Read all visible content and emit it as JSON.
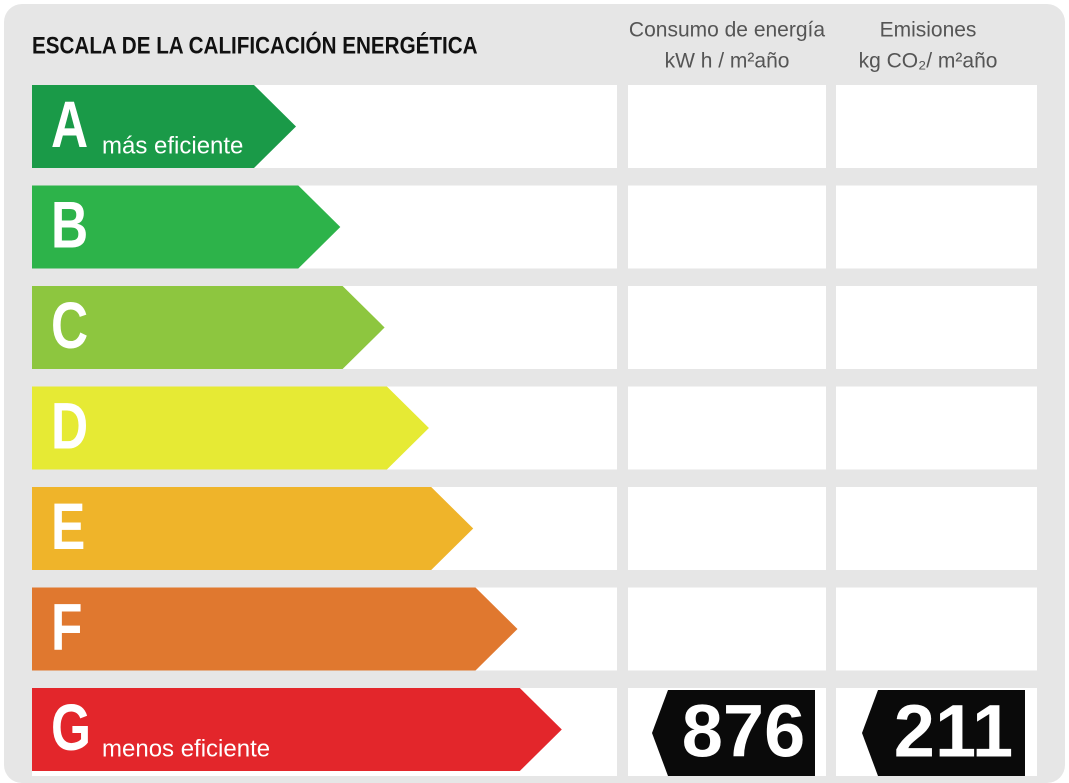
{
  "header": {
    "title": "ESCALA DE LA CALIFICACIÓN ENERGÉTICA",
    "energy_column": [
      "Consumo de energía",
      "kW h / m²año"
    ],
    "emissions_column": [
      "Emisiones",
      "kg CO₂/ m²año"
    ]
  },
  "rows": [
    {
      "letter": "A",
      "label": "más eficiente",
      "color": "#1a9a48"
    },
    {
      "letter": "B",
      "color": "#2db34a"
    },
    {
      "letter": "C",
      "color": "#8dc63f"
    },
    {
      "letter": "D",
      "color": "#e6ea34"
    },
    {
      "letter": "E",
      "color": "#efb42a"
    },
    {
      "letter": "F",
      "color": "#e0782f"
    },
    {
      "letter": "G",
      "label": "menos eficiente",
      "color": "#e3262b",
      "energy": 876,
      "emissions": 211
    }
  ]
}
